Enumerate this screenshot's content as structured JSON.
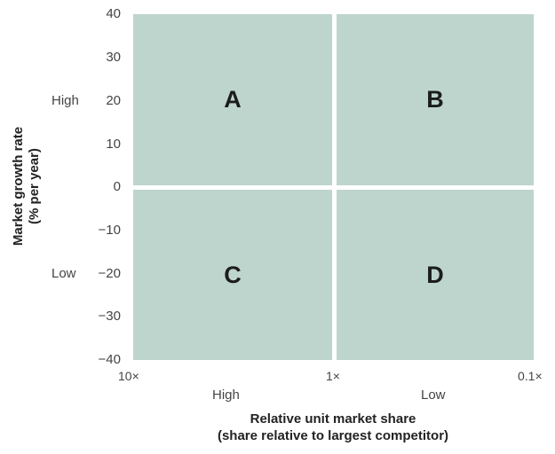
{
  "quadrants": {
    "top_left": "A",
    "top_right": "B",
    "bottom_left": "C",
    "bottom_right": "D"
  },
  "y_axis": {
    "ticks": [
      "40",
      "30",
      "20",
      "10",
      "0",
      "−10",
      "−20",
      "−30",
      "−40"
    ],
    "levels": {
      "high": "High",
      "low": "Low"
    },
    "label_line1": "Market growth rate",
    "label_line2": "(% per year)"
  },
  "x_axis": {
    "ticks": [
      "10×",
      "1×",
      "0.1×"
    ],
    "levels": {
      "high": "High",
      "low": "Low"
    },
    "label_line1": "Relative unit market share",
    "label_line2": "(share relative to largest competitor)"
  },
  "colors": {
    "quadrant_fill": "#bdd5cd",
    "divider": "#ffffff"
  }
}
